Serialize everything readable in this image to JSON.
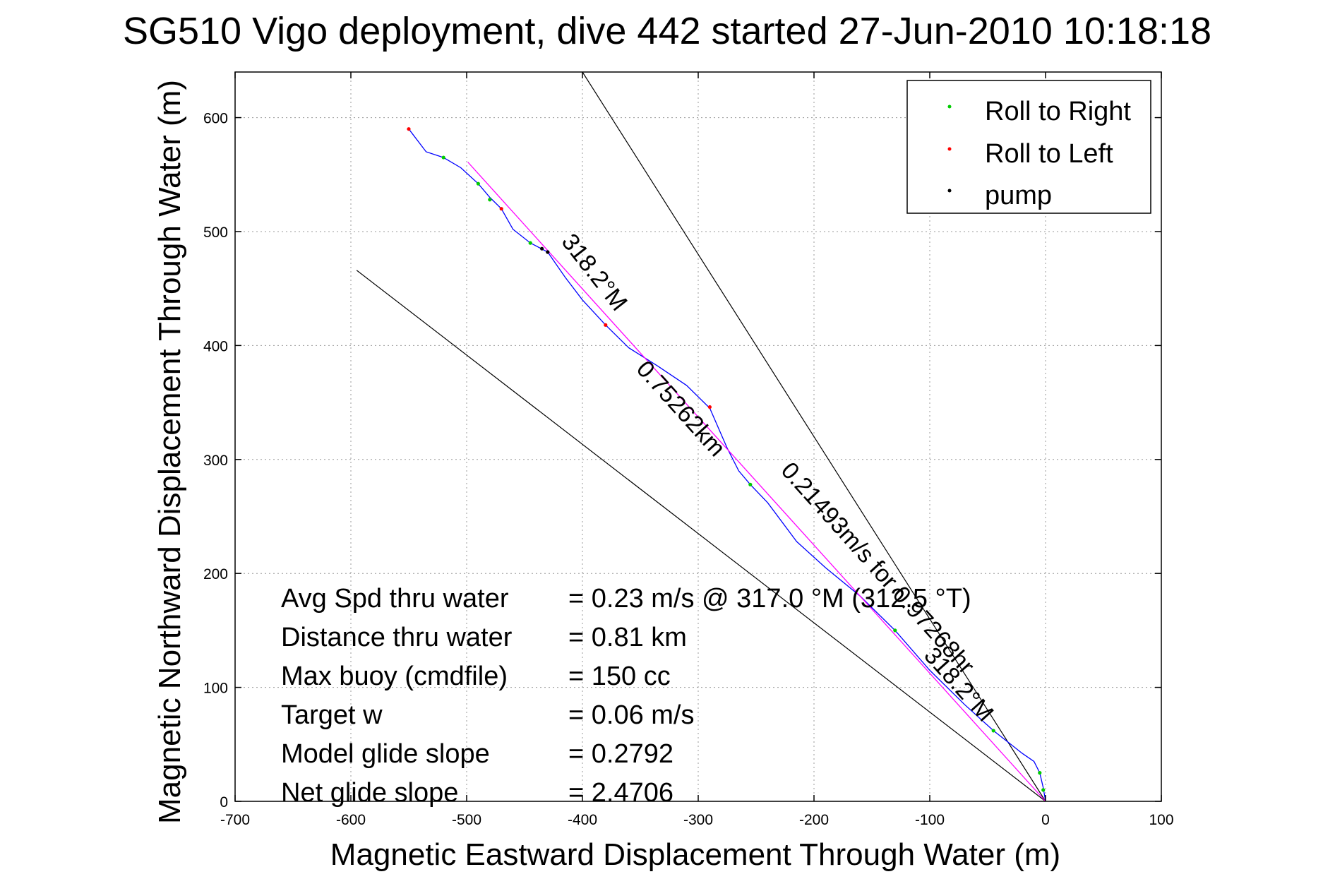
{
  "chart_data": {
    "type": "line",
    "title": "SG510 Vigo deployment, dive 442 started 27-Jun-2010 10:18:18",
    "xlabel": "Magnetic Eastward Displacement Through Water (m)",
    "ylabel": "Magnetic Northward Displacement Through Water (m)",
    "xlim": [
      -700,
      100
    ],
    "ylim": [
      0,
      640
    ],
    "xticks": [
      -700,
      -600,
      -500,
      -400,
      -300,
      -200,
      -100,
      0,
      100
    ],
    "yticks": [
      0,
      100,
      200,
      300,
      400,
      500,
      600
    ],
    "grid": true,
    "legend_position": "top-right",
    "legend": [
      {
        "label": "Roll to Right",
        "color": "#00cc00"
      },
      {
        "label": "Roll to Left",
        "color": "#ff0000"
      },
      {
        "label": "pump",
        "color": "#000000"
      }
    ],
    "series": [
      {
        "color": "#0000ff",
        "x": [
          0,
          -2,
          -5,
          -10,
          -20,
          -30,
          -45,
          -70,
          -100,
          -130,
          -160,
          -190,
          -215,
          -240,
          -255,
          -265,
          -275,
          -290,
          -310,
          -335,
          -360,
          -380,
          -400,
          -415,
          -430,
          -445,
          -460,
          -470,
          -480,
          -490,
          -505,
          -520,
          -535,
          -550
        ],
        "y": [
          0,
          12,
          25,
          35,
          42,
          50,
          62,
          85,
          115,
          150,
          180,
          205,
          228,
          262,
          278,
          290,
          310,
          345,
          365,
          382,
          398,
          418,
          440,
          460,
          482,
          490,
          502,
          520,
          530,
          542,
          556,
          565,
          570,
          590
        ]
      },
      {
        "color": "#ff00ff",
        "x": [
          0,
          -499
        ],
        "y": [
          0,
          561
        ]
      }
    ],
    "reference_lines": [
      {
        "x": [
          0,
          -400
        ],
        "y": [
          0,
          640
        ],
        "color": "#000000"
      },
      {
        "x": [
          0,
          -595
        ],
        "y": [
          0,
          466
        ],
        "color": "#000000"
      }
    ],
    "color_points": [
      {
        "x": -2,
        "y": 10,
        "color": "#00cc00"
      },
      {
        "x": -5,
        "y": 25,
        "color": "#00cc00"
      },
      {
        "x": -45,
        "y": 62,
        "color": "#00cc00"
      },
      {
        "x": -130,
        "y": 150,
        "color": "#00cc00"
      },
      {
        "x": -255,
        "y": 278,
        "color": "#00cc00"
      },
      {
        "x": -290,
        "y": 346,
        "color": "#ff0000"
      },
      {
        "x": -380,
        "y": 418,
        "color": "#ff0000"
      },
      {
        "x": -430,
        "y": 482,
        "color": "#000000"
      },
      {
        "x": -435,
        "y": 485,
        "color": "#000000"
      },
      {
        "x": -445,
        "y": 490,
        "color": "#00cc00"
      },
      {
        "x": -470,
        "y": 520,
        "color": "#ff0000"
      },
      {
        "x": -480,
        "y": 528,
        "color": "#00cc00"
      },
      {
        "x": -490,
        "y": 542,
        "color": "#00cc00"
      },
      {
        "x": -520,
        "y": 565,
        "color": "#00cc00"
      },
      {
        "x": -550,
        "y": 590,
        "color": "#ff0000"
      }
    ],
    "annotations": [
      {
        "text": "318.2°M",
        "x": -395,
        "y": 460,
        "angle": 52
      },
      {
        "text": "0.75262km",
        "x": -320,
        "y": 340,
        "angle": 48
      },
      {
        "text": "0.21493m/s for 0.97268hr",
        "x": -150,
        "y": 200,
        "angle": 48
      },
      {
        "text": "318.2°M",
        "x": -80,
        "y": 98,
        "angle": 48
      }
    ],
    "stats": [
      {
        "label": "Avg Spd thru water",
        "value": "=  0.23 m/s @ 317.0 °M (312.5 °T)"
      },
      {
        "label": "Distance thru water",
        "value": "=  0.81 km"
      },
      {
        "label": "Max buoy (cmdfile)",
        "value": "= 150 cc"
      },
      {
        "label": "Target w",
        "value": "= 0.06 m/s"
      },
      {
        "label": "Model glide slope",
        "value": "= 0.2792"
      },
      {
        "label": "Net glide slope",
        "value": "= 2.4706"
      }
    ]
  }
}
